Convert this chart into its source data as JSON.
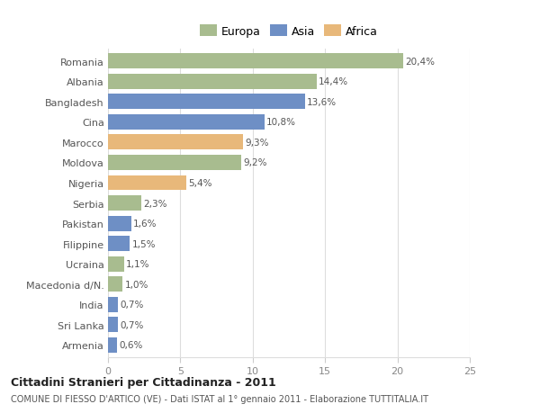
{
  "categories": [
    "Romania",
    "Albania",
    "Bangladesh",
    "Cina",
    "Marocco",
    "Moldova",
    "Nigeria",
    "Serbia",
    "Pakistan",
    "Filippine",
    "Ucraina",
    "Macedonia d/N.",
    "India",
    "Sri Lanka",
    "Armenia"
  ],
  "values": [
    20.4,
    14.4,
    13.6,
    10.8,
    9.3,
    9.2,
    5.4,
    2.3,
    1.6,
    1.5,
    1.1,
    1.0,
    0.7,
    0.7,
    0.6
  ],
  "labels": [
    "20,4%",
    "14,4%",
    "13,6%",
    "10,8%",
    "9,3%",
    "9,2%",
    "5,4%",
    "2,3%",
    "1,6%",
    "1,5%",
    "1,1%",
    "1,0%",
    "0,7%",
    "0,7%",
    "0,6%"
  ],
  "colors": [
    "#a8bc8f",
    "#a8bc8f",
    "#6e8fc5",
    "#6e8fc5",
    "#e8b87a",
    "#a8bc8f",
    "#e8b87a",
    "#a8bc8f",
    "#6e8fc5",
    "#6e8fc5",
    "#a8bc8f",
    "#a8bc8f",
    "#6e8fc5",
    "#6e8fc5",
    "#6e8fc5"
  ],
  "legend_labels": [
    "Europa",
    "Asia",
    "Africa"
  ],
  "legend_colors": [
    "#a8bc8f",
    "#6e8fc5",
    "#e8b87a"
  ],
  "xlim": [
    0,
    25
  ],
  "xticks": [
    0,
    5,
    10,
    15,
    20,
    25
  ],
  "title": "Cittadini Stranieri per Cittadinanza - 2011",
  "subtitle": "COMUNE DI FIESSO D'ARTICO (VE) - Dati ISTAT al 1° gennaio 2011 - Elaborazione TUTTITALIA.IT",
  "bg_color": "#ffffff",
  "grid_color": "#dddddd",
  "bar_height": 0.75
}
